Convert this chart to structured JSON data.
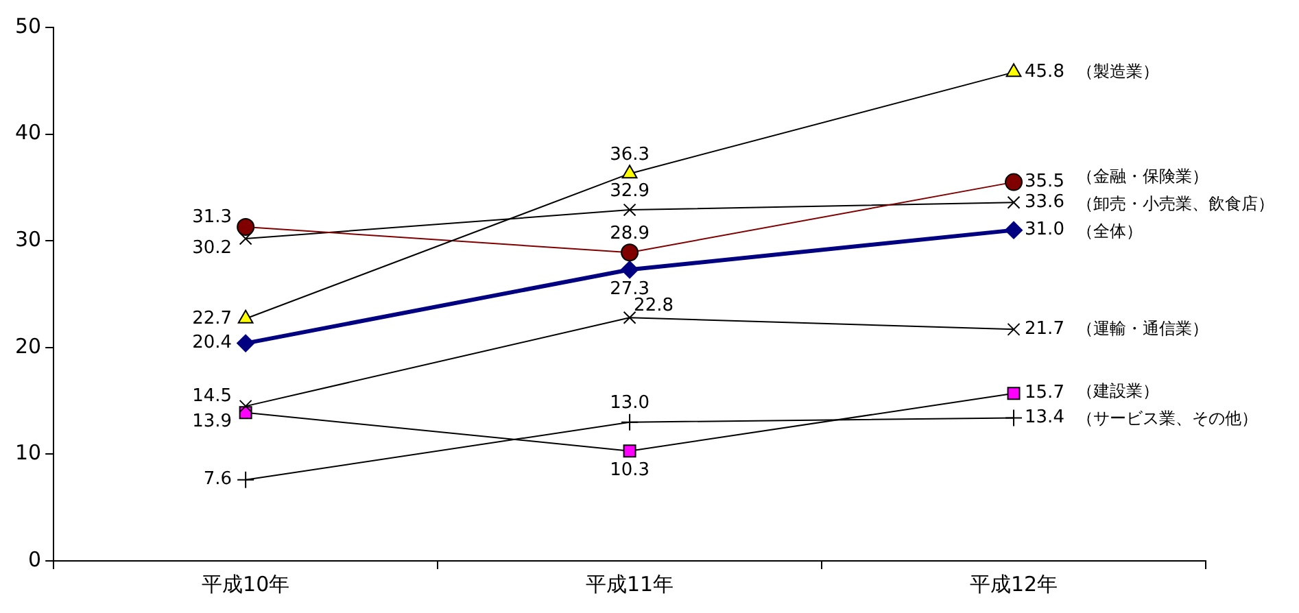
{
  "chart_data": {
    "type": "line",
    "categories": [
      "平成10年",
      "平成11年",
      "平成12年"
    ],
    "ylim": [
      0,
      50
    ],
    "yticks": [
      0,
      10,
      20,
      30,
      40,
      50
    ],
    "series": [
      {
        "name": "（製造業）",
        "color": "#ffff00",
        "marker": "triangle",
        "values": [
          22.7,
          36.3,
          45.8
        ],
        "value_labels": [
          "22.7",
          "36.3",
          "45.8"
        ]
      },
      {
        "name": "（金融・保険業）",
        "color": "#800000",
        "marker": "circle",
        "values": [
          31.3,
          28.9,
          35.5
        ],
        "value_labels": [
          "31.3",
          "28.9",
          "35.5"
        ]
      },
      {
        "name": "（卸売・小売業、飲食店）",
        "color": "#000000",
        "marker": "cross",
        "values": [
          30.2,
          32.9,
          33.6
        ],
        "value_labels": [
          "30.2",
          "32.9",
          "33.6"
        ]
      },
      {
        "name": "（全体）",
        "color": "#000080",
        "marker": "diamond",
        "values": [
          20.4,
          27.3,
          31.0
        ],
        "value_labels": [
          "20.4",
          "27.3",
          "31.0"
        ]
      },
      {
        "name": "（運輸・通信業）",
        "color": "#000000",
        "marker": "cross",
        "values": [
          14.5,
          22.8,
          21.7
        ],
        "value_labels": [
          "14.5",
          "22.8",
          "21.7"
        ]
      },
      {
        "name": "（建設業）",
        "color": "#ff00ff",
        "marker": "square",
        "values": [
          13.9,
          10.3,
          15.7
        ],
        "value_labels": [
          "13.9",
          "10.3",
          "15.7"
        ]
      },
      {
        "name": "（サービス業、その他）",
        "color": "#000000",
        "marker": "plus",
        "values": [
          7.6,
          13.0,
          13.4
        ],
        "value_labels": [
          "7.6",
          "13.0",
          "13.4"
        ]
      }
    ]
  }
}
